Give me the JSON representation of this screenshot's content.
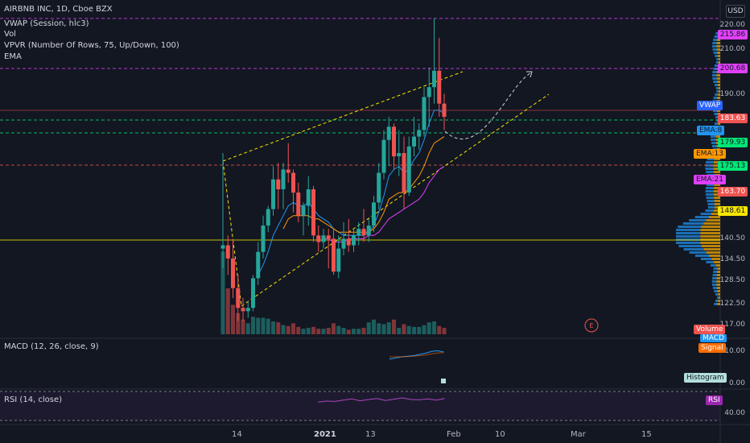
{
  "legend": {
    "title": "AIRBNB INC, 1D, Cboe BZX",
    "vwap": "VWAP (Session, hlc3)",
    "vol": "Vol",
    "vpvr": "VPVR (Number Of Rows, 75, Up/Down, 100)",
    "ema": "EMA",
    "macd": "MACD (12, 26, close, 9)",
    "rsi": "RSI (14, close)"
  },
  "axis": {
    "currency": "USD",
    "price_ticks": [
      "220.00",
      "210.00",
      "190.00",
      "140.50",
      "134.50",
      "128.50",
      "122.50",
      "117.00"
    ],
    "macd_ticks": [
      "10.00",
      "0.00"
    ],
    "rsi_ticks": [
      "40.00"
    ],
    "time_labels": [
      {
        "text": "14",
        "bold": false
      },
      {
        "text": "2021",
        "bold": true
      },
      {
        "text": "13",
        "bold": false
      },
      {
        "text": "Feb",
        "bold": false
      },
      {
        "text": "10",
        "bold": false
      },
      {
        "text": "Mar",
        "bold": false
      },
      {
        "text": "15",
        "bold": false
      }
    ]
  },
  "price_tags": {
    "p215": "215.86",
    "p200": "200.68",
    "vwap": "VWAP",
    "p183": "183.63",
    "ema8": "EMA:8",
    "p179": "179.93",
    "ema13": "EMA:13",
    "p175": "175.13",
    "ema21": "EMA:21",
    "p163": "163.70",
    "p148": "148.61"
  },
  "pane_tags": {
    "volume": "Volume",
    "macd_hidden": "MACD",
    "signal": "Signal",
    "histogram": "Histogram",
    "rsi": "RSI"
  },
  "earnings_marker": "E",
  "colors": {
    "background": "#131722",
    "up": "#26a69a",
    "down": "#ef5350",
    "magenta": "#e040fb",
    "yellow": "#f5e500",
    "green": "#00e676",
    "orange": "#ff9800",
    "blue": "#2196f3"
  },
  "chart_data": {
    "type": "candlestick",
    "price_range": [
      117,
      222
    ],
    "horizontal_levels": [
      215.86,
      200.68,
      186.5,
      183.63,
      179.93,
      175.13,
      148.61
    ],
    "candles": [
      {
        "o": 146,
        "h": 175,
        "l": 140,
        "c": 147
      },
      {
        "o": 147,
        "h": 150,
        "l": 138,
        "c": 143
      },
      {
        "o": 143,
        "h": 149,
        "l": 131,
        "c": 134
      },
      {
        "o": 134,
        "h": 138,
        "l": 124,
        "c": 128
      },
      {
        "o": 128,
        "h": 131,
        "l": 124,
        "c": 127
      },
      {
        "o": 127,
        "h": 130,
        "l": 125,
        "c": 128
      },
      {
        "o": 128,
        "h": 138,
        "l": 127,
        "c": 137
      },
      {
        "o": 137,
        "h": 148,
        "l": 135,
        "c": 145
      },
      {
        "o": 145,
        "h": 156,
        "l": 143,
        "c": 153
      },
      {
        "o": 153,
        "h": 159,
        "l": 151,
        "c": 158
      },
      {
        "o": 158,
        "h": 171,
        "l": 156,
        "c": 167
      },
      {
        "o": 167,
        "h": 172,
        "l": 158,
        "c": 164
      },
      {
        "o": 164,
        "h": 172,
        "l": 158,
        "c": 170
      },
      {
        "o": 170,
        "h": 178,
        "l": 166,
        "c": 169
      },
      {
        "o": 169,
        "h": 170,
        "l": 157,
        "c": 163
      },
      {
        "o": 163,
        "h": 166,
        "l": 154,
        "c": 156
      },
      {
        "o": 156,
        "h": 160,
        "l": 150,
        "c": 159
      },
      {
        "o": 159,
        "h": 168,
        "l": 153,
        "c": 164
      },
      {
        "o": 164,
        "h": 165,
        "l": 148,
        "c": 150
      },
      {
        "o": 150,
        "h": 153,
        "l": 145,
        "c": 148
      },
      {
        "o": 148,
        "h": 152,
        "l": 146,
        "c": 150
      },
      {
        "o": 150,
        "h": 152,
        "l": 140,
        "c": 149
      },
      {
        "o": 149,
        "h": 152,
        "l": 138,
        "c": 139
      },
      {
        "o": 139,
        "h": 150,
        "l": 137,
        "c": 146
      },
      {
        "o": 146,
        "h": 154,
        "l": 144,
        "c": 149
      },
      {
        "o": 149,
        "h": 155,
        "l": 145,
        "c": 147
      },
      {
        "o": 147,
        "h": 152,
        "l": 145,
        "c": 150
      },
      {
        "o": 150,
        "h": 154,
        "l": 147,
        "c": 152
      },
      {
        "o": 152,
        "h": 158,
        "l": 148,
        "c": 150
      },
      {
        "o": 150,
        "h": 155,
        "l": 148,
        "c": 153
      },
      {
        "o": 153,
        "h": 162,
        "l": 151,
        "c": 160
      },
      {
        "o": 160,
        "h": 172,
        "l": 158,
        "c": 169
      },
      {
        "o": 169,
        "h": 182,
        "l": 167,
        "c": 179
      },
      {
        "o": 179,
        "h": 186,
        "l": 171,
        "c": 183
      },
      {
        "o": 183,
        "h": 184,
        "l": 170,
        "c": 174
      },
      {
        "o": 174,
        "h": 182,
        "l": 168,
        "c": 175
      },
      {
        "o": 175,
        "h": 180,
        "l": 158,
        "c": 163
      },
      {
        "o": 163,
        "h": 180,
        "l": 162,
        "c": 177
      },
      {
        "o": 177,
        "h": 186,
        "l": 174,
        "c": 180
      },
      {
        "o": 180,
        "h": 184,
        "l": 176,
        "c": 182
      },
      {
        "o": 182,
        "h": 195,
        "l": 180,
        "c": 192
      },
      {
        "o": 192,
        "h": 201,
        "l": 183,
        "c": 195
      },
      {
        "o": 195,
        "h": 216,
        "l": 190,
        "c": 200
      },
      {
        "o": 200,
        "h": 210,
        "l": 186,
        "c": 190
      },
      {
        "o": 190,
        "h": 193,
        "l": 182,
        "c": 186
      }
    ],
    "volume": [
      9,
      5,
      3.2,
      2.3,
      1.6,
      1.2,
      1.9,
      1.8,
      1.8,
      1.7,
      1.4,
      1.3,
      1.0,
      0.9,
      1.2,
      0.8,
      0.6,
      0.7,
      0.8,
      0.6,
      0.6,
      0.7,
      1.2,
      0.9,
      0.7,
      0.5,
      0.6,
      0.6,
      0.7,
      1.3,
      1.6,
      1.2,
      1.1,
      1.3,
      1.6,
      0.7,
      1.1,
      0.9,
      0.8,
      0.8,
      1.0,
      1.3,
      1.4,
      0.9,
      0.7
    ],
    "ema8": [
      null,
      null,
      null,
      null,
      null,
      null,
      null,
      138,
      141,
      145,
      150,
      153,
      156,
      159,
      160,
      159,
      159,
      160,
      158,
      156,
      155,
      154,
      152,
      151,
      150,
      150,
      150,
      150,
      150,
      151,
      153,
      157,
      162,
      168,
      170,
      171,
      169,
      170,
      173,
      175,
      179,
      184,
      188,
      188,
      187
    ],
    "ema13": [
      null,
      null,
      null,
      null,
      null,
      null,
      null,
      null,
      null,
      null,
      null,
      null,
      152,
      155,
      156,
      156,
      156,
      156,
      155,
      155,
      154,
      153,
      152,
      151,
      151,
      151,
      151,
      151,
      151,
      151,
      152,
      154,
      157,
      161,
      162,
      163,
      163,
      164,
      166,
      168,
      171,
      175,
      178,
      179,
      180
    ],
    "ema21": [
      null,
      null,
      null,
      null,
      null,
      null,
      null,
      null,
      null,
      null,
      null,
      null,
      null,
      null,
      null,
      null,
      null,
      null,
      null,
      null,
      149,
      149,
      148,
      148,
      148,
      149,
      149,
      149,
      149,
      150,
      150,
      151,
      153,
      155,
      156,
      157,
      158,
      159,
      160,
      161,
      163,
      166,
      168,
      170,
      171
    ],
    "macd": [
      4,
      5,
      6,
      6.5,
      7,
      8,
      9,
      10.5,
      11,
      10
    ],
    "signal": [
      6,
      6,
      6,
      6.2,
      6.5,
      7,
      7.5,
      8.5,
      9.2,
      9.5
    ],
    "rsi": [
      52,
      55,
      54,
      58,
      62,
      56,
      60,
      63,
      57,
      61,
      65,
      60,
      59,
      62,
      58,
      63
    ]
  }
}
